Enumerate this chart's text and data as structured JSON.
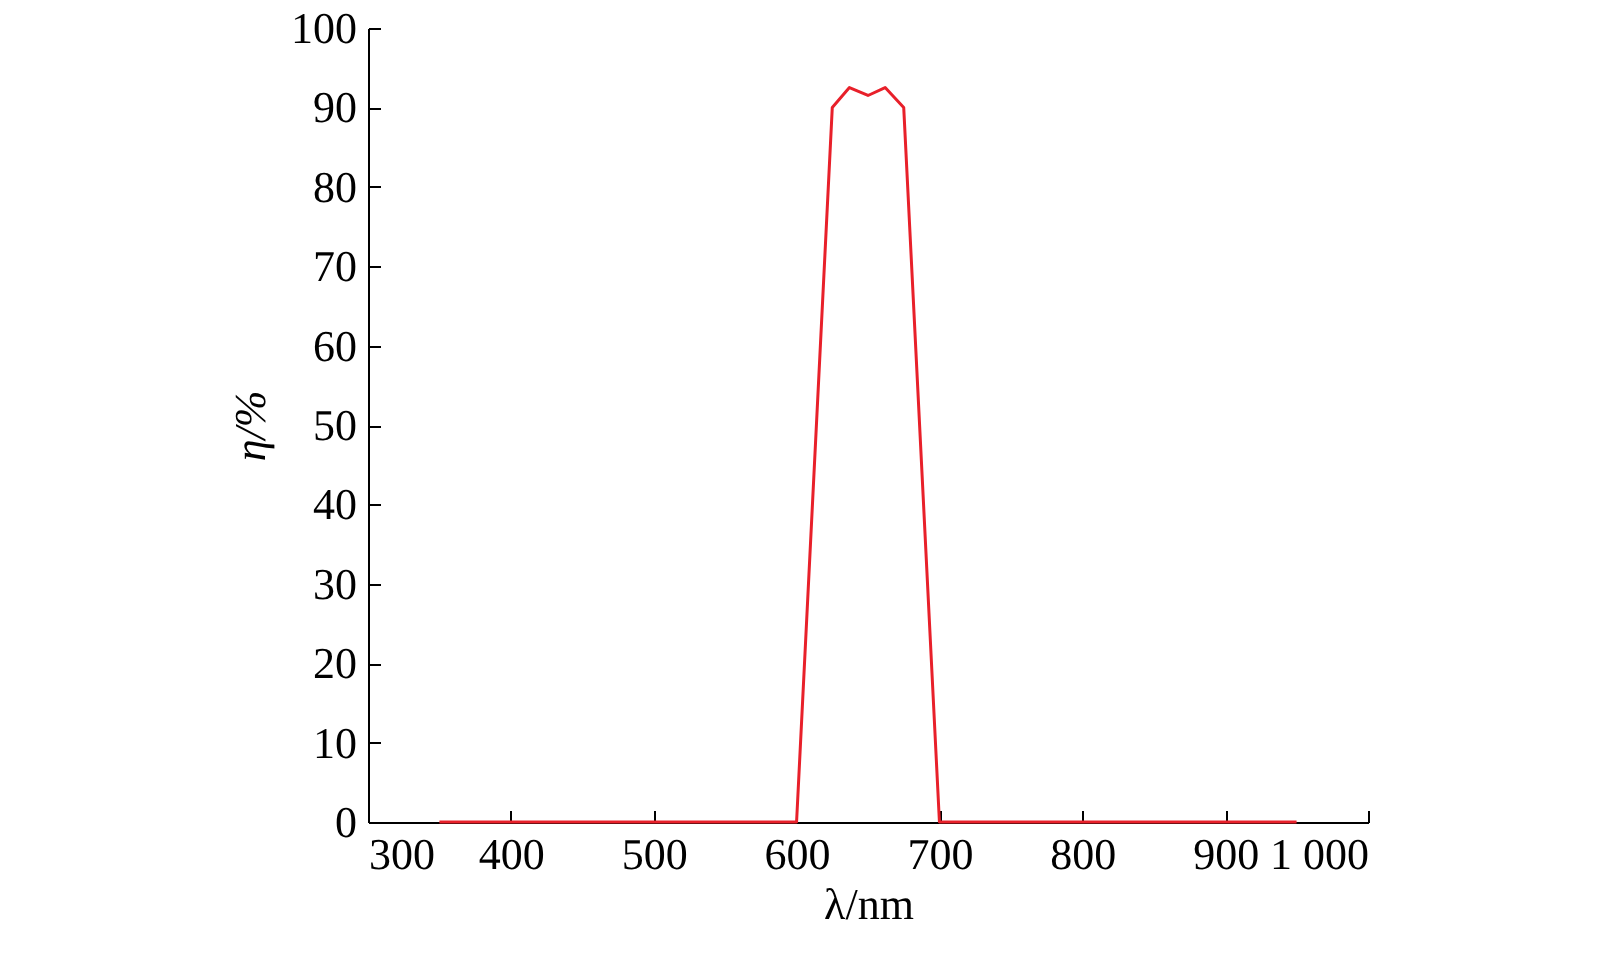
{
  "chart_data": {
    "type": "line",
    "xlabel": "λ/nm",
    "ylabel": "η/%",
    "x": [
      350,
      600,
      625,
      637,
      650,
      662,
      675,
      700,
      950
    ],
    "series": [
      {
        "color": "#e8202a",
        "values": [
          0,
          0,
          90,
          92.5,
          91.5,
          92.5,
          90,
          0,
          0
        ]
      }
    ],
    "xlim": [
      300,
      1000
    ],
    "xticks": [
      300,
      400,
      500,
      600,
      700,
      800,
      900,
      {
        "value": 1000,
        "label": "1 000"
      }
    ],
    "ylim": [
      0,
      100
    ],
    "yticks": [
      0,
      10,
      20,
      30,
      40,
      50,
      60,
      70,
      80,
      90,
      100
    ],
    "grid": false,
    "marker": "none",
    "line_style": "solid"
  }
}
